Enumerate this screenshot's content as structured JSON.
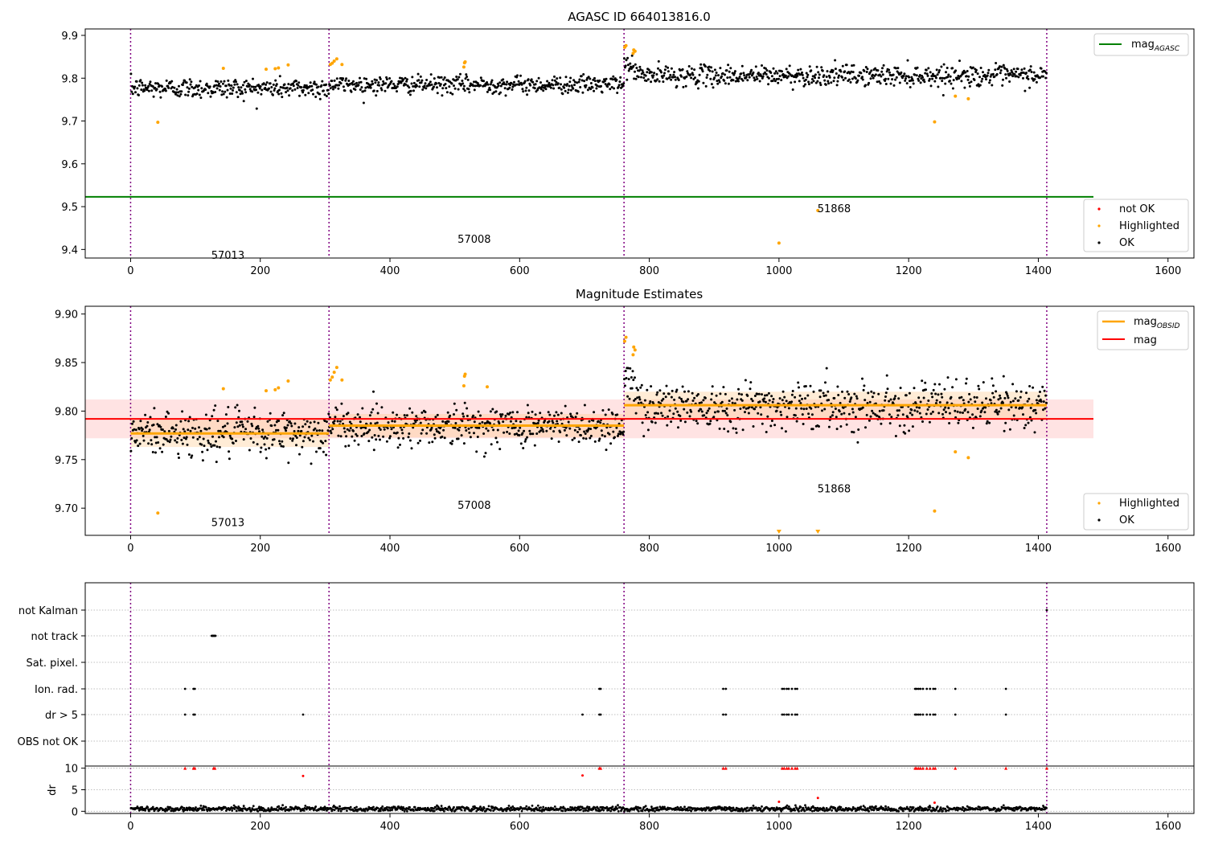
{
  "chart_data": [
    {
      "type": "scatter",
      "title": "AGASC ID 664013816.0",
      "xlim": [
        -70,
        1640
      ],
      "ylim": [
        9.38,
        9.915
      ],
      "xticks": [
        0,
        200,
        400,
        600,
        800,
        1000,
        1200,
        1400,
        1600
      ],
      "yticks": [
        9.4,
        9.5,
        9.6,
        9.7,
        9.8,
        9.9
      ],
      "ytick_labels": [
        "9.4",
        "9.5",
        "9.6",
        "9.7",
        "9.8",
        "9.9"
      ],
      "obs_boundaries": [
        0,
        306,
        761,
        1413
      ],
      "obs_labels": [
        {
          "text": "57013",
          "x": 150,
          "y": 9.378
        },
        {
          "text": "57008",
          "x": 530,
          "y": 9.416
        },
        {
          "text": "51868",
          "x": 1085,
          "y": 9.487
        }
      ],
      "mag_agasc": {
        "name": "mag_{AGASC}",
        "value": 9.523,
        "x_range": [
          -70,
          1485
        ]
      },
      "segments": [
        {
          "x0": 0,
          "x1": 306,
          "mean": 9.777,
          "sd": 0.014
        },
        {
          "x0": 306,
          "x1": 761,
          "mean": 9.785,
          "sd": 0.012
        },
        {
          "x0": 761,
          "x1": 1413,
          "mean": 9.806,
          "sd": 0.014
        }
      ],
      "highlighted": [
        [
          42,
          9.697
        ],
        [
          143,
          9.823
        ],
        [
          209,
          9.821
        ],
        [
          223,
          9.822
        ],
        [
          228,
          9.824
        ],
        [
          243,
          9.831
        ],
        [
          308,
          9.832
        ],
        [
          311,
          9.835
        ],
        [
          314,
          9.84
        ],
        [
          318,
          9.845
        ],
        [
          326,
          9.832
        ],
        [
          514,
          9.826
        ],
        [
          515,
          9.836
        ],
        [
          516,
          9.838
        ],
        [
          762,
          9.872
        ],
        [
          764,
          9.876
        ],
        [
          775,
          9.858
        ],
        [
          776,
          9.866
        ],
        [
          778,
          9.863
        ],
        [
          1000,
          9.415
        ],
        [
          1060,
          9.491
        ],
        [
          1240,
          9.698
        ],
        [
          1272,
          9.758
        ],
        [
          1292,
          9.752
        ]
      ],
      "legend": {
        "top": {
          "position": "upper right",
          "entries": [
            "mag_{AGASC}"
          ]
        },
        "bottom": {
          "position": "lower right",
          "entries": [
            "not OK",
            "Highlighted",
            "OK"
          ]
        }
      },
      "series_colors": {
        "ok": "#000000",
        "highlighted": "#ffa500",
        "not_ok": "#ff0000",
        "mag_agasc": "#008000",
        "boundary": "#800080"
      }
    },
    {
      "type": "scatter",
      "title": "Magnitude Estimates",
      "xlim": [
        -70,
        1640
      ],
      "ylim": [
        9.672,
        9.908
      ],
      "xticks": [
        0,
        200,
        400,
        600,
        800,
        1000,
        1200,
        1400,
        1600
      ],
      "yticks": [
        9.7,
        9.75,
        9.8,
        9.85,
        9.9
      ],
      "ytick_labels": [
        "9.70",
        "9.75",
        "9.80",
        "9.85",
        "9.90"
      ],
      "obs_boundaries": [
        0,
        306,
        761,
        1413
      ],
      "obs_labels": [
        {
          "text": "57013",
          "x": 150,
          "y": 9.6815
        },
        {
          "text": "57008",
          "x": 530,
          "y": 9.6995
        },
        {
          "text": "51868",
          "x": 1085,
          "y": 9.7162
        }
      ],
      "mag": {
        "name": "mag",
        "value": 9.792,
        "sd": 0.02,
        "x_range": [
          -70,
          1485
        ]
      },
      "mag_obsid": {
        "name": "mag_{OBSID}"
      },
      "segments": [
        {
          "x0": 0,
          "x1": 306,
          "mean": 9.777,
          "sd": 0.014
        },
        {
          "x0": 306,
          "x1": 761,
          "mean": 9.785,
          "sd": 0.012
        },
        {
          "x0": 761,
          "x1": 1413,
          "mean": 9.806,
          "sd": 0.014
        }
      ],
      "highlighted": [
        [
          42,
          9.695
        ],
        [
          143,
          9.823
        ],
        [
          209,
          9.821
        ],
        [
          223,
          9.822
        ],
        [
          228,
          9.824
        ],
        [
          243,
          9.831
        ],
        [
          308,
          9.832
        ],
        [
          311,
          9.835
        ],
        [
          314,
          9.84
        ],
        [
          318,
          9.845
        ],
        [
          326,
          9.832
        ],
        [
          514,
          9.826
        ],
        [
          515,
          9.836
        ],
        [
          516,
          9.838
        ],
        [
          550,
          9.825
        ],
        [
          762,
          9.872
        ],
        [
          764,
          9.876
        ],
        [
          775,
          9.858
        ],
        [
          776,
          9.866
        ],
        [
          778,
          9.863
        ],
        [
          1240,
          9.697
        ],
        [
          1272,
          9.758
        ],
        [
          1292,
          9.752
        ]
      ],
      "off_scale_markers": [
        1000,
        1060
      ],
      "legend": {
        "top": {
          "position": "upper right",
          "entries": [
            "mag_{OBSID}",
            "mag"
          ]
        },
        "bottom": {
          "position": "lower right",
          "entries": [
            "Highlighted",
            "OK"
          ]
        }
      },
      "series_colors": {
        "ok": "#000000",
        "highlighted": "#ffa500",
        "mag": "#ff0000",
        "mag_obsid": "#ffa500",
        "boundary": "#800080"
      }
    },
    {
      "type": "scatter",
      "title": "",
      "xlim": [
        -70,
        1640
      ],
      "xticks": [
        0,
        200,
        400,
        600,
        800,
        1000,
        1200,
        1400,
        1600
      ],
      "obs_boundaries": [
        0,
        306,
        761,
        1413
      ],
      "flag_rows": [
        "not Kalman",
        "not track",
        "Sat. pixel.",
        "Ion. rad.",
        "dr > 5",
        "OBS not OK"
      ],
      "flags": {
        "not Kalman": [
          1413
        ],
        "not track": [
          125,
          126,
          127,
          128,
          129,
          130,
          131
        ],
        "Sat. pixel.": [],
        "Ion. rad.": [
          84,
          97,
          99,
          723,
          725,
          914,
          918,
          1005,
          1008,
          1012,
          1015,
          1020,
          1025,
          1028,
          1210,
          1212,
          1215,
          1218,
          1222,
          1228,
          1233,
          1238,
          1241,
          1272,
          1350
        ],
        "dr > 5": [
          84,
          97,
          99,
          266,
          697,
          723,
          725,
          914,
          918,
          1005,
          1008,
          1012,
          1015,
          1020,
          1025,
          1028,
          1210,
          1212,
          1215,
          1218,
          1222,
          1228,
          1233,
          1238,
          1241,
          1272,
          1350
        ],
        "OBS not OK": []
      },
      "dr_panel": {
        "ylabel": "dr",
        "ylim": [
          -0.5,
          10.5
        ],
        "yticks": [
          0,
          5,
          10
        ],
        "ytick_labels": [
          "0",
          "5",
          "10"
        ],
        "clipped_value": 10,
        "high_points": [
          [
            266,
            8.2
          ],
          [
            697,
            8.3
          ],
          [
            1000,
            2.2
          ],
          [
            1060,
            3.1
          ],
          [
            1240,
            2.0
          ]
        ],
        "clipped_x": [
          84,
          97,
          99,
          128,
          130,
          723,
          725,
          914,
          918,
          1005,
          1008,
          1012,
          1015,
          1020,
          1025,
          1028,
          1210,
          1212,
          1215,
          1218,
          1222,
          1228,
          1233,
          1238,
          1241,
          1272,
          1350,
          1413
        ]
      },
      "series_colors": {
        "flag": "#000000",
        "dr_clipped": "#ff0000",
        "dr": "#000000",
        "boundary": "#800080"
      }
    }
  ]
}
